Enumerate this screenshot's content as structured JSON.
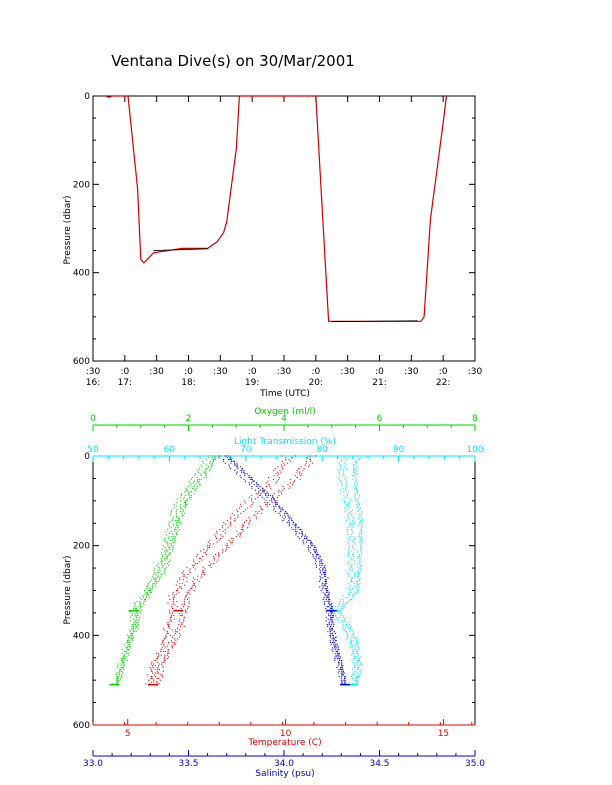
{
  "title": "Ventana Dive(s) on 30/Mar/2001",
  "colors": {
    "axis": "#000000",
    "depth_track": "#cc0000",
    "depth_track_dark": "#000000",
    "oxygen": "#00cc00",
    "light": "#00e5ff",
    "temperature": "#e00000",
    "salinity": "#0000d0"
  },
  "chart_data": [
    {
      "type": "line",
      "title": "Ventana Dive(s) on 30/Mar/2001",
      "xlabel": "Time (UTC)",
      "ylabel": "Pressure (dbar)",
      "xlim": [
        16.5,
        22.5
      ],
      "ylim": [
        600,
        0
      ],
      "y_ticks": [
        "0",
        "200",
        "400",
        "600"
      ],
      "x_ticks": [
        {
          "top": ":30",
          "bottom": "16:",
          "t": 16.5
        },
        {
          "top": ":0",
          "bottom": "17:",
          "t": 17.0
        },
        {
          "top": ":30",
          "bottom": "",
          "t": 17.5
        },
        {
          "top": ":0",
          "bottom": "18:",
          "t": 18.0
        },
        {
          "top": ":30",
          "bottom": "",
          "t": 18.5
        },
        {
          "top": ":0",
          "bottom": "19:",
          "t": 19.0
        },
        {
          "top": ":30",
          "bottom": "",
          "t": 19.5
        },
        {
          "top": ":0",
          "bottom": "20:",
          "t": 20.0
        },
        {
          "top": ":30",
          "bottom": "",
          "t": 20.5
        },
        {
          "top": ":0",
          "bottom": "21:",
          "t": 21.0
        },
        {
          "top": ":30",
          "bottom": "",
          "t": 21.5
        },
        {
          "top": ":0",
          "bottom": "22:",
          "t": 22.0
        },
        {
          "top": ":30",
          "bottom": "",
          "t": 22.5
        }
      ],
      "series": [
        {
          "x": [
            16.7,
            16.75,
            16.8,
            16.95,
            17.05,
            17.2,
            17.25,
            17.3,
            17.45,
            17.9,
            18.3,
            18.45,
            18.55,
            18.6,
            18.75,
            18.8,
            19.0,
            19.5,
            19.95,
            20.0,
            20.2,
            20.5,
            21.0,
            21.5,
            21.65,
            21.7,
            21.8,
            22.0,
            22.05
          ],
          "y": [
            0,
            3,
            0,
            0,
            0,
            210,
            370,
            378,
            355,
            345,
            345,
            330,
            310,
            285,
            120,
            0,
            0,
            0,
            0,
            0,
            510,
            510,
            510,
            510,
            510,
            500,
            280,
            60,
            0
          ]
        }
      ]
    },
    {
      "type": "scatter",
      "ylabel": "Pressure (dbar)",
      "ylim": [
        600,
        0
      ],
      "y_ticks": [
        "0",
        "200",
        "400",
        "600"
      ],
      "axes": {
        "oxygen": {
          "label": "Oxygen (ml/l)",
          "range": [
            0,
            8
          ],
          "ticks": [
            "0",
            "2",
            "4",
            "6",
            "8"
          ]
        },
        "light": {
          "label": "Light Transmission (%)",
          "range": [
            50,
            100
          ],
          "ticks": [
            "50",
            "60",
            "70",
            "80",
            "90",
            "100"
          ]
        },
        "temperature": {
          "label": "Temperature (C)",
          "range": [
            3.9,
            16.0
          ],
          "ticks": [
            "5",
            "10",
            "15"
          ]
        },
        "salinity": {
          "label": "Salinity (psu)",
          "range": [
            33.0,
            35.0
          ],
          "ticks": [
            "33.0",
            "33.5",
            "34.0",
            "34.5",
            "35.0"
          ]
        }
      },
      "series": [
        {
          "name": "Oxygen (ml/l)",
          "pressure": [
            0,
            20,
            50,
            80,
            120,
            160,
            200,
            240,
            280,
            300,
            340,
            345,
            380,
            420,
            470,
            510
          ],
          "value": [
            2.4,
            2.3,
            2.1,
            1.9,
            1.7,
            1.6,
            1.5,
            1.4,
            1.2,
            1.1,
            0.85,
            0.85,
            0.8,
            0.7,
            0.55,
            0.45
          ]
        },
        {
          "name": "Light Transmission (%)",
          "pressure": [
            0,
            20,
            60,
            100,
            150,
            200,
            250,
            290,
            310,
            345,
            380,
            420,
            470,
            510
          ],
          "value": [
            83.5,
            83,
            83,
            83.5,
            84,
            84,
            84,
            84,
            83.5,
            81.5,
            83,
            84,
            84.5,
            84
          ],
          "annotations": []
        },
        {
          "name": "Temperature (C)",
          "pressure": [
            0,
            20,
            60,
            100,
            150,
            200,
            240,
            270,
            290,
            310,
            345,
            380,
            420,
            460,
            510
          ],
          "value": [
            10.5,
            10.3,
            9.9,
            9.2,
            8.5,
            7.9,
            7.4,
            7.0,
            6.9,
            6.7,
            6.6,
            6.5,
            6.3,
            6.0,
            5.8
          ],
          "annotations": []
        },
        {
          "name": "Salinity (psu)",
          "pressure": [
            0,
            20,
            60,
            100,
            150,
            200,
            240,
            270,
            290,
            345,
            380,
            420,
            470,
            510
          ],
          "value": [
            33.7,
            33.75,
            33.85,
            33.95,
            34.05,
            34.15,
            34.2,
            34.22,
            34.22,
            34.25,
            34.25,
            34.27,
            34.3,
            34.32
          ],
          "annotations": []
        }
      ],
      "label_position": "top-and-bottom"
    }
  ]
}
